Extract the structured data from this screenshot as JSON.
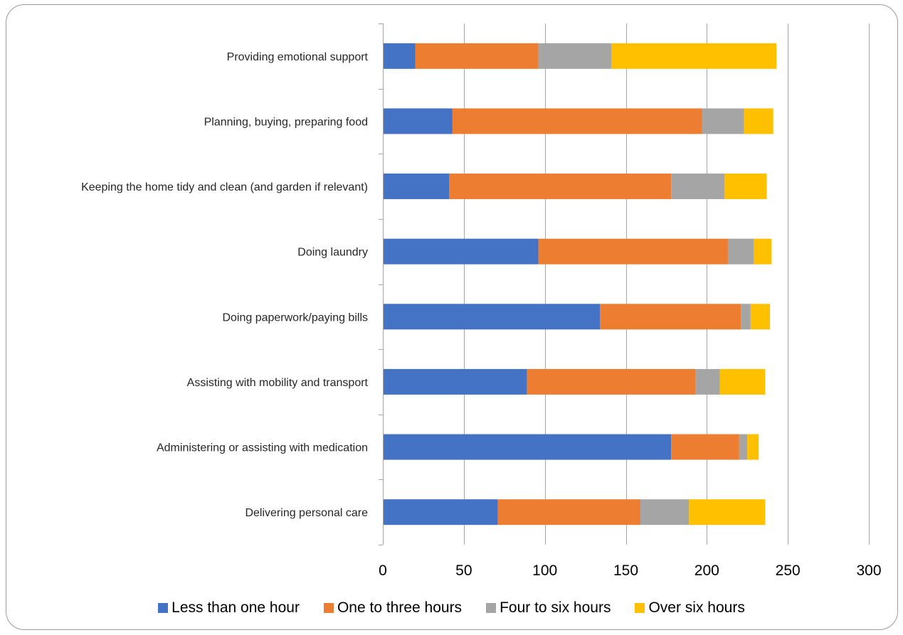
{
  "chart_data": {
    "type": "bar",
    "orientation": "horizontal",
    "stacked": true,
    "title": "",
    "xlabel": "",
    "ylabel": "",
    "xlim": [
      0,
      300
    ],
    "xticks": [
      0,
      50,
      100,
      150,
      200,
      250,
      300
    ],
    "grid": true,
    "legend_position": "bottom",
    "categories": [
      "Providing emotional support",
      "Planning, buying, preparing food",
      "Keeping the home tidy and clean (and garden if relevant)",
      "Doing laundry",
      "Doing paperwork/paying bills",
      "Assisting with mobility and transport",
      "Administering or assisting with medication",
      "Delivering personal care"
    ],
    "series": [
      {
        "name": "Less than one hour",
        "color": "#4472C4",
        "values": [
          20,
          43,
          41,
          96,
          134,
          89,
          178,
          71
        ]
      },
      {
        "name": "One to three hours",
        "color": "#ED7D31",
        "values": [
          76,
          154,
          137,
          117,
          87,
          104,
          42,
          88
        ]
      },
      {
        "name": "Four to six hours",
        "color": "#A5A5A5",
        "values": [
          45,
          26,
          33,
          16,
          6,
          15,
          5,
          30
        ]
      },
      {
        "name": "Over six hours",
        "color": "#FFC000",
        "values": [
          102,
          18,
          26,
          11,
          12,
          28,
          7,
          47
        ]
      }
    ]
  }
}
